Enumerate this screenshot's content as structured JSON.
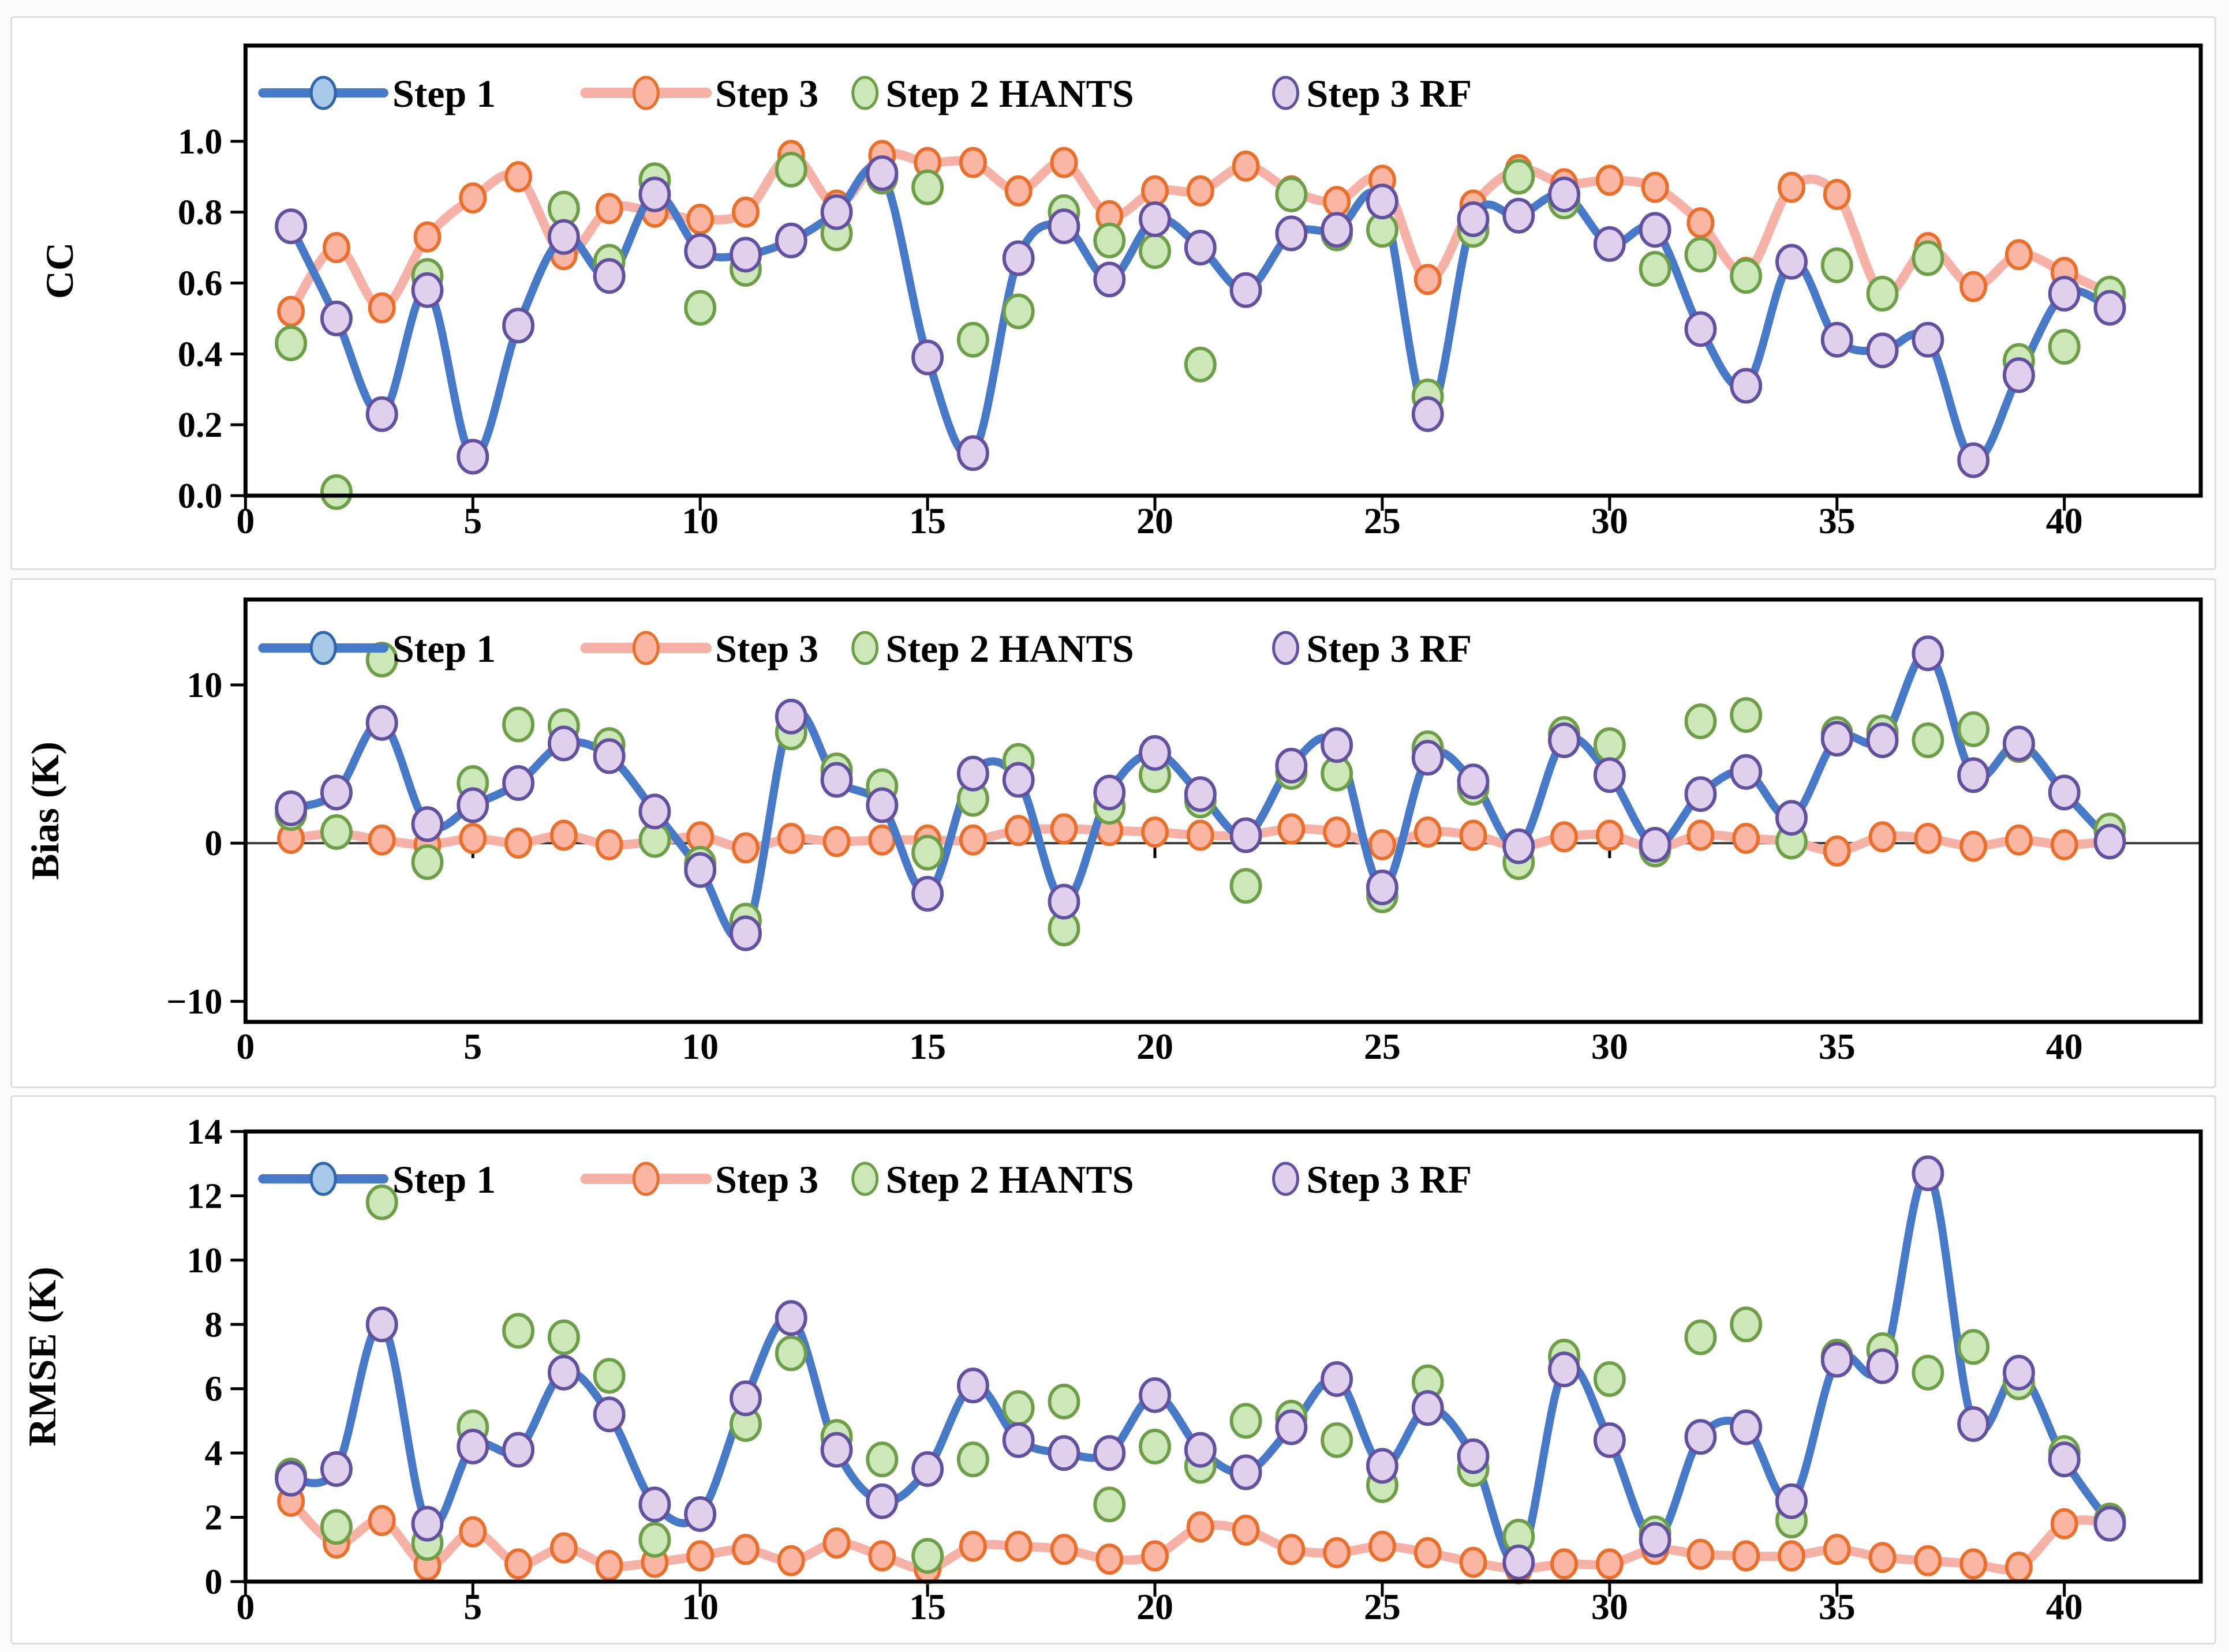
{
  "page": {
    "background": "#fbfbfb",
    "panel_background": "#ffffff",
    "panel_border_color": "#dedede"
  },
  "colors": {
    "step1_line": "#4679C7",
    "step1_marker_fill": "#A9C9E9",
    "step1_marker_edge": "#2F66AC",
    "step3_line": "#F7B2A7",
    "step3_marker_fill": "#FAB6A3",
    "step3_marker_edge": "#E96F2B",
    "hants_marker_fill": "#CDE8B8",
    "hants_marker_edge": "#6E9F48",
    "rf_marker_fill": "#E0D0EE",
    "rf_marker_edge": "#62519F",
    "axis": "#000000",
    "zero_line": "#3a3a3a"
  },
  "legend_items": [
    {
      "label": "Step 1",
      "glyph": "line-marker",
      "style": "step1"
    },
    {
      "label": "Step 3",
      "glyph": "line-marker",
      "style": "step3"
    },
    {
      "label": "Step 2 HANTS",
      "glyph": "marker",
      "style": "hants"
    },
    {
      "label": "Step 3 RF",
      "glyph": "marker",
      "style": "rf"
    }
  ],
  "chart_data": [
    {
      "id": "cc",
      "type": "line",
      "title": "",
      "xlabel": "",
      "ylabel": "CC",
      "grid": false,
      "legend_position": "top-left-inside",
      "xlim": [
        0,
        43
      ],
      "ylim": [
        0,
        1.27
      ],
      "zero_axis": false,
      "xticks": [
        {
          "v": 0,
          "label": "0"
        },
        {
          "v": 5,
          "label": "5"
        },
        {
          "v": 10,
          "label": "10"
        },
        {
          "v": 15,
          "label": "15"
        },
        {
          "v": 20,
          "label": "20"
        },
        {
          "v": 25,
          "label": "25"
        },
        {
          "v": 30,
          "label": "30"
        },
        {
          "v": 35,
          "label": "35"
        },
        {
          "v": 40,
          "label": "40"
        }
      ],
      "yticks": [
        {
          "v": 0,
          "label": "0.0"
        },
        {
          "v": 0.2,
          "label": "0.2"
        },
        {
          "v": 0.4,
          "label": "0.4"
        },
        {
          "v": 0.6,
          "label": "0.6"
        },
        {
          "v": 0.8,
          "label": "0.8"
        },
        {
          "v": 1.0,
          "label": "1.0"
        }
      ],
      "x": [
        1,
        2,
        3,
        4,
        5,
        6,
        7,
        8,
        9,
        10,
        11,
        12,
        13,
        14,
        15,
        16,
        17,
        18,
        19,
        20,
        21,
        22,
        23,
        24,
        25,
        26,
        27,
        28,
        29,
        30,
        31,
        32,
        33,
        34,
        35,
        36,
        37,
        38,
        39,
        40,
        41
      ],
      "series": [
        {
          "name": "Step 1",
          "style": "step1",
          "render": "line",
          "values": [
            0.76,
            0.5,
            0.23,
            0.58,
            0.11,
            0.48,
            0.73,
            0.62,
            0.85,
            0.69,
            0.68,
            0.72,
            0.8,
            0.91,
            0.39,
            0.12,
            0.67,
            0.76,
            0.61,
            0.78,
            0.7,
            0.58,
            0.74,
            0.75,
            0.83,
            0.23,
            0.78,
            0.79,
            0.85,
            0.71,
            0.75,
            0.47,
            0.31,
            0.66,
            0.44,
            0.41,
            0.44,
            0.1,
            0.34,
            0.57,
            0.53
          ]
        },
        {
          "name": "Step 3",
          "style": "step3",
          "render": "line-marker",
          "values": [
            0.52,
            0.7,
            0.53,
            0.73,
            0.84,
            0.9,
            0.68,
            0.81,
            0.8,
            0.78,
            0.8,
            0.96,
            0.82,
            0.96,
            0.94,
            0.94,
            0.86,
            0.94,
            0.79,
            0.86,
            0.86,
            0.93,
            0.86,
            0.83,
            0.89,
            0.61,
            0.82,
            0.92,
            0.88,
            0.89,
            0.87,
            0.77,
            0.63,
            0.87,
            0.85,
            0.57,
            0.7,
            0.59,
            0.68,
            0.63,
            0.57
          ]
        },
        {
          "name": "Step 2 HANTS",
          "style": "hants",
          "render": "marker",
          "values": [
            0.43,
            0.01,
            null,
            0.62,
            null,
            null,
            0.81,
            0.66,
            0.89,
            0.53,
            0.64,
            0.92,
            0.74,
            0.9,
            0.87,
            0.44,
            0.52,
            0.8,
            0.72,
            0.69,
            0.37,
            null,
            0.85,
            0.74,
            0.75,
            0.28,
            0.75,
            0.9,
            0.83,
            null,
            0.64,
            0.68,
            0.62,
            null,
            0.65,
            0.57,
            0.67,
            null,
            0.38,
            0.42,
            0.57
          ]
        },
        {
          "name": "Step 3 RF",
          "style": "rf",
          "render": "marker",
          "values": [
            0.76,
            0.5,
            0.23,
            0.58,
            0.11,
            0.48,
            0.73,
            0.62,
            0.85,
            0.69,
            0.68,
            0.72,
            0.8,
            0.91,
            0.39,
            0.12,
            0.67,
            0.76,
            0.61,
            0.78,
            0.7,
            0.58,
            0.74,
            0.75,
            0.83,
            0.23,
            0.78,
            0.79,
            0.85,
            0.71,
            0.75,
            0.47,
            0.31,
            0.66,
            0.44,
            0.41,
            0.44,
            0.1,
            0.34,
            0.57,
            0.53
          ]
        }
      ]
    },
    {
      "id": "bias",
      "type": "line",
      "title": "",
      "xlabel": "",
      "ylabel": "Bias (K)",
      "grid": false,
      "legend_position": "top-left-inside",
      "xlim": [
        0,
        43
      ],
      "ylim": [
        -11.3,
        15.4
      ],
      "zero_axis": true,
      "xticks": [
        {
          "v": 0,
          "label": "0"
        },
        {
          "v": 5,
          "label": "5"
        },
        {
          "v": 10,
          "label": "10"
        },
        {
          "v": 15,
          "label": "15"
        },
        {
          "v": 20,
          "label": "20"
        },
        {
          "v": 25,
          "label": "25"
        },
        {
          "v": 30,
          "label": "30"
        },
        {
          "v": 35,
          "label": "35"
        },
        {
          "v": 40,
          "label": "40"
        }
      ],
      "yticks": [
        {
          "v": -10,
          "label": "−10"
        },
        {
          "v": 0,
          "label": "0"
        },
        {
          "v": 10,
          "label": "10"
        }
      ],
      "x": [
        1,
        2,
        3,
        4,
        5,
        6,
        7,
        8,
        9,
        10,
        11,
        12,
        13,
        14,
        15,
        16,
        17,
        18,
        19,
        20,
        21,
        22,
        23,
        24,
        25,
        26,
        27,
        28,
        29,
        30,
        31,
        32,
        33,
        34,
        35,
        36,
        37,
        38,
        39,
        40,
        41
      ],
      "series": [
        {
          "name": "Step 1",
          "style": "step1",
          "render": "line",
          "values": [
            2.2,
            3.2,
            7.6,
            1.2,
            2.4,
            3.8,
            6.3,
            5.5,
            2.0,
            -1.7,
            -5.7,
            8.0,
            4.0,
            2.4,
            -3.2,
            4.4,
            4.0,
            -3.7,
            3.2,
            5.7,
            3.1,
            0.5,
            4.9,
            6.2,
            -2.8,
            5.4,
            3.9,
            -0.2,
            6.5,
            4.3,
            -0.1,
            3.1,
            4.5,
            1.6,
            6.6,
            6.5,
            12.0,
            4.3,
            6.3,
            3.2,
            0.1
          ]
        },
        {
          "name": "Step 3",
          "style": "step3",
          "render": "line-marker",
          "values": [
            0.3,
            0.6,
            0.2,
            -0.1,
            0.3,
            0.0,
            0.5,
            -0.1,
            0.1,
            0.4,
            -0.3,
            0.3,
            0.1,
            0.2,
            0.2,
            0.2,
            0.8,
            0.9,
            0.8,
            0.7,
            0.5,
            0.5,
            0.9,
            0.7,
            -0.1,
            0.7,
            0.5,
            -0.2,
            0.4,
            0.5,
            -0.3,
            0.5,
            0.3,
            0.1,
            -0.5,
            0.4,
            0.3,
            -0.2,
            0.2,
            -0.1,
            0.1
          ]
        },
        {
          "name": "Step 2 HANTS",
          "style": "hants",
          "render": "marker",
          "values": [
            1.9,
            0.7,
            11.6,
            -1.2,
            3.8,
            7.5,
            7.4,
            6.2,
            0.2,
            -1.3,
            -4.9,
            7.0,
            4.6,
            3.6,
            -0.6,
            2.8,
            5.2,
            -5.4,
            2.3,
            4.3,
            2.7,
            -2.7,
            4.5,
            4.4,
            -3.3,
            6.0,
            3.5,
            -1.2,
            6.9,
            6.2,
            -0.4,
            7.7,
            8.1,
            0.1,
            6.9,
            7.0,
            6.5,
            7.2,
            6.2,
            null,
            0.8
          ]
        },
        {
          "name": "Step 3 RF",
          "style": "rf",
          "render": "marker",
          "values": [
            2.2,
            3.2,
            7.6,
            1.2,
            2.4,
            3.8,
            6.3,
            5.5,
            2.0,
            -1.7,
            -5.7,
            8.0,
            4.0,
            2.4,
            -3.2,
            4.4,
            4.0,
            -3.7,
            3.2,
            5.7,
            3.1,
            0.5,
            4.9,
            6.2,
            -2.8,
            5.4,
            3.9,
            -0.2,
            6.5,
            4.3,
            -0.1,
            3.1,
            4.5,
            1.6,
            6.6,
            6.5,
            12.0,
            4.3,
            6.3,
            3.2,
            0.1
          ]
        }
      ]
    },
    {
      "id": "rmse",
      "type": "line",
      "title": "",
      "xlabel": "",
      "ylabel": "RMSE (K)",
      "grid": false,
      "legend_position": "top-left-inside",
      "xlim": [
        0,
        43
      ],
      "ylim": [
        0,
        14
      ],
      "zero_axis": false,
      "xticks": [
        {
          "v": 0,
          "label": "0"
        },
        {
          "v": 5,
          "label": "5"
        },
        {
          "v": 10,
          "label": "10"
        },
        {
          "v": 15,
          "label": "15"
        },
        {
          "v": 20,
          "label": "20"
        },
        {
          "v": 25,
          "label": "25"
        },
        {
          "v": 30,
          "label": "30"
        },
        {
          "v": 35,
          "label": "35"
        },
        {
          "v": 40,
          "label": "40"
        }
      ],
      "yticks": [
        {
          "v": 0,
          "label": "0"
        },
        {
          "v": 2,
          "label": "2"
        },
        {
          "v": 4,
          "label": "4"
        },
        {
          "v": 6,
          "label": "6"
        },
        {
          "v": 8,
          "label": "8"
        },
        {
          "v": 10,
          "label": "10"
        },
        {
          "v": 12,
          "label": "12"
        },
        {
          "v": 14,
          "label": "14"
        }
      ],
      "x": [
        1,
        2,
        3,
        4,
        5,
        6,
        7,
        8,
        9,
        10,
        11,
        12,
        13,
        14,
        15,
        16,
        17,
        18,
        19,
        20,
        21,
        22,
        23,
        24,
        25,
        26,
        27,
        28,
        29,
        30,
        31,
        32,
        33,
        34,
        35,
        36,
        37,
        38,
        39,
        40,
        41
      ],
      "series": [
        {
          "name": "Step 1",
          "style": "step1",
          "render": "line",
          "values": [
            3.2,
            3.5,
            8.0,
            1.8,
            4.2,
            4.1,
            6.5,
            5.2,
            2.4,
            2.1,
            5.7,
            8.2,
            4.1,
            2.5,
            3.5,
            6.1,
            4.4,
            4.0,
            4.0,
            5.8,
            4.1,
            3.4,
            4.8,
            6.3,
            3.6,
            5.4,
            3.9,
            0.6,
            6.6,
            4.4,
            1.3,
            4.5,
            4.8,
            2.5,
            6.9,
            6.7,
            12.7,
            4.9,
            6.5,
            3.8,
            1.8
          ]
        },
        {
          "name": "Step 3",
          "style": "step3",
          "render": "line-marker",
          "values": [
            2.5,
            1.2,
            1.9,
            0.5,
            1.55,
            0.55,
            1.05,
            0.5,
            0.6,
            0.8,
            1.0,
            0.65,
            1.2,
            0.8,
            0.4,
            1.1,
            1.1,
            1.0,
            0.7,
            0.8,
            1.7,
            1.6,
            1.0,
            0.9,
            1.1,
            0.9,
            0.6,
            0.4,
            0.55,
            0.55,
            1.0,
            0.85,
            0.8,
            0.8,
            1.0,
            0.75,
            0.65,
            0.55,
            0.45,
            1.8,
            1.85
          ]
        },
        {
          "name": "Step 2 HANTS",
          "style": "hants",
          "render": "marker",
          "values": [
            3.3,
            1.7,
            11.8,
            1.2,
            4.8,
            7.8,
            7.6,
            6.4,
            1.3,
            null,
            4.9,
            7.1,
            4.5,
            3.8,
            0.8,
            3.8,
            5.4,
            5.6,
            2.4,
            4.2,
            3.6,
            5.0,
            5.1,
            4.4,
            3.0,
            6.2,
            3.5,
            1.4,
            7.0,
            6.3,
            1.5,
            7.6,
            8.0,
            1.9,
            7.0,
            7.2,
            6.5,
            7.3,
            6.2,
            4.0,
            1.9
          ]
        },
        {
          "name": "Step 3 RF",
          "style": "rf",
          "render": "marker",
          "values": [
            3.2,
            3.5,
            8.0,
            1.8,
            4.2,
            4.1,
            6.5,
            5.2,
            2.4,
            2.1,
            5.7,
            8.2,
            4.1,
            2.5,
            3.5,
            6.1,
            4.4,
            4.0,
            4.0,
            5.8,
            4.1,
            3.4,
            4.8,
            6.3,
            3.6,
            5.4,
            3.9,
            0.6,
            6.6,
            4.4,
            1.3,
            4.5,
            4.8,
            2.5,
            6.9,
            6.7,
            12.7,
            4.9,
            6.5,
            3.8,
            1.8
          ]
        }
      ]
    }
  ]
}
